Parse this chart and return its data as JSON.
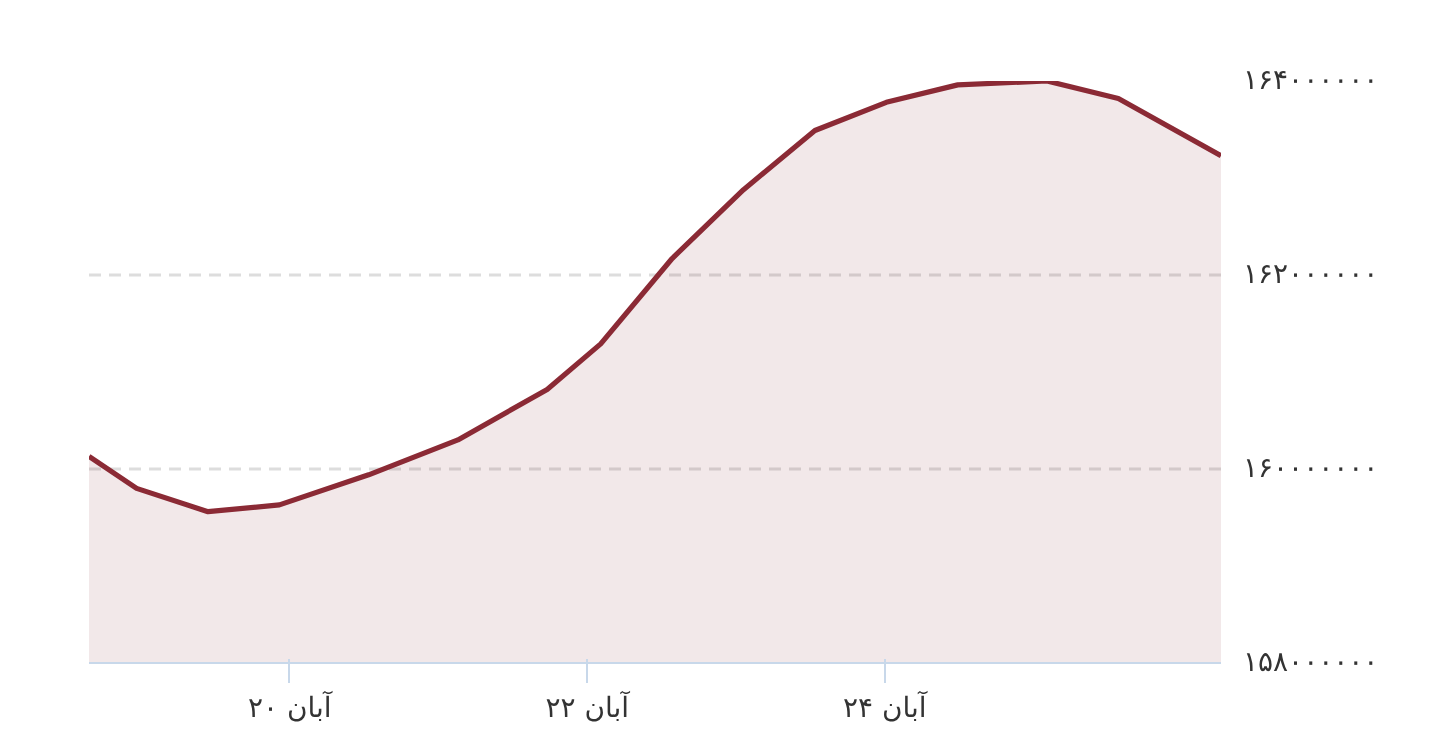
{
  "chart_data": {
    "type": "area",
    "x": [
      18.65,
      18.97,
      19.45,
      19.93,
      20.53,
      21.13,
      21.73,
      22.09,
      22.57,
      23.05,
      23.53,
      24.01,
      24.49,
      25.09,
      25.57,
      26.26
    ],
    "series": [
      {
        "color": "#8b2a35",
        "values": [
          160130000,
          159800000,
          159560000,
          159630000,
          159940000,
          160300000,
          160820000,
          161290000,
          162170000,
          162880000,
          163490000,
          163780000,
          163960000,
          164000000,
          163820000,
          163230000
        ]
      }
    ],
    "xlim": [
      18.65,
      26.26
    ],
    "xticks": [
      {
        "value": 20,
        "label": "۲۰ آبان"
      },
      {
        "value": 22,
        "label": "۲۲ آبان"
      },
      {
        "value": 24,
        "label": "۲۴ آبان"
      }
    ],
    "ylim": [
      158000000,
      164000000
    ],
    "yticks": [
      {
        "value": 158000000,
        "label": "۱۵۸۰۰۰۰۰۰"
      },
      {
        "value": 160000000,
        "label": "۱۶۰۰۰۰۰۰۰"
      },
      {
        "value": 162000000,
        "label": "۱۶۲۰۰۰۰۰۰"
      },
      {
        "value": 164000000,
        "label": "۱۶۴۰۰۰۰۰۰"
      }
    ],
    "grid": "y"
  }
}
